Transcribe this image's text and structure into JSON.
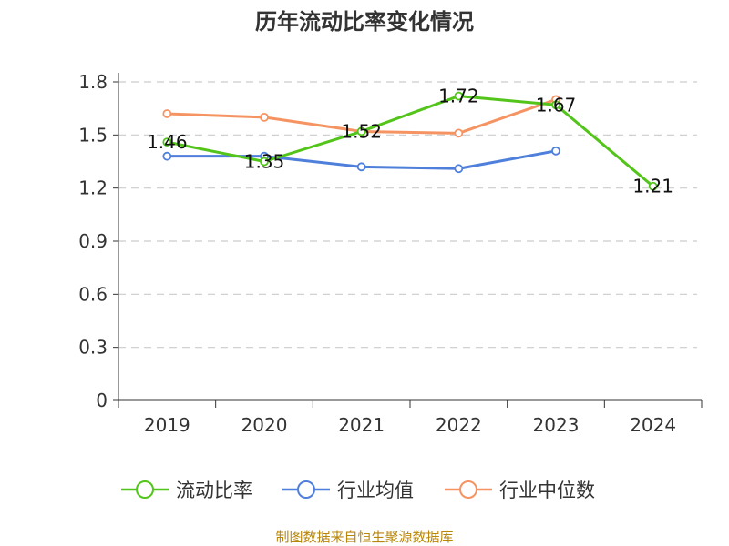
{
  "chart_data": {
    "type": "line",
    "title": "历年流动比率变化情况",
    "categories": [
      "2019",
      "2020",
      "2021",
      "2022",
      "2023",
      "2024"
    ],
    "yticks": [
      "0",
      "0.3",
      "0.6",
      "0.9",
      "1.2",
      "1.5",
      "1.8"
    ],
    "ylim": [
      0,
      1.8
    ],
    "grid": true,
    "legend_position": "bottom",
    "series": [
      {
        "name": "流动比率",
        "color": "#52c41a",
        "values": [
          1.46,
          1.35,
          1.52,
          1.72,
          1.67,
          1.21
        ],
        "labels": [
          "1.46",
          "1.35",
          "1.52",
          "1.72",
          "1.67",
          "1.21"
        ]
      },
      {
        "name": "行业均值",
        "color": "#4e7fdb",
        "values": [
          1.38,
          1.38,
          1.32,
          1.31,
          1.41,
          null
        ]
      },
      {
        "name": "行业中位数",
        "color": "#f59462",
        "values": [
          1.62,
          1.6,
          1.52,
          1.51,
          1.7,
          null
        ]
      }
    ],
    "source": "制图数据来自恒生聚源数据库"
  }
}
